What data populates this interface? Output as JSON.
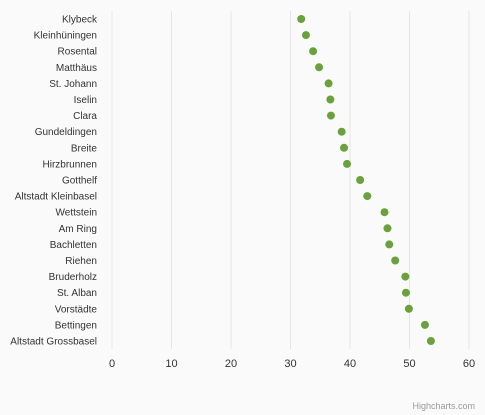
{
  "chart_data": {
    "type": "scatter",
    "title": "",
    "xlabel": "",
    "ylabel": "",
    "xlim": [
      0,
      60
    ],
    "xticks": [
      0,
      10,
      20,
      30,
      40,
      50,
      60
    ],
    "grid": "vertical",
    "legend": "none",
    "categories": [
      "Klybeck",
      "Kleinhüningen",
      "Rosental",
      "Matthäus",
      "St. Johann",
      "Iselin",
      "Clara",
      "Gundeldingen",
      "Breite",
      "Hirzbrunnen",
      "Gotthelf",
      "Altstadt Kleinbasel",
      "Wettstein",
      "Am Ring",
      "Bachletten",
      "Riehen",
      "Bruderholz",
      "St. Alban",
      "Vorstädte",
      "Bettingen",
      "Altstadt Grossbasel"
    ],
    "series": [
      {
        "color": "#6aa23a",
        "values": [
          31.8,
          32.6,
          33.8,
          34.8,
          36.4,
          36.7,
          36.8,
          38.6,
          39.0,
          39.5,
          41.7,
          42.9,
          45.8,
          46.3,
          46.6,
          47.6,
          49.3,
          49.4,
          49.9,
          52.6,
          53.6
        ]
      }
    ]
  },
  "credits": "Highcharts.com",
  "colors": {
    "background": "#fafafa",
    "grid": "#e6e6e6",
    "point": "#6aa23a"
  }
}
